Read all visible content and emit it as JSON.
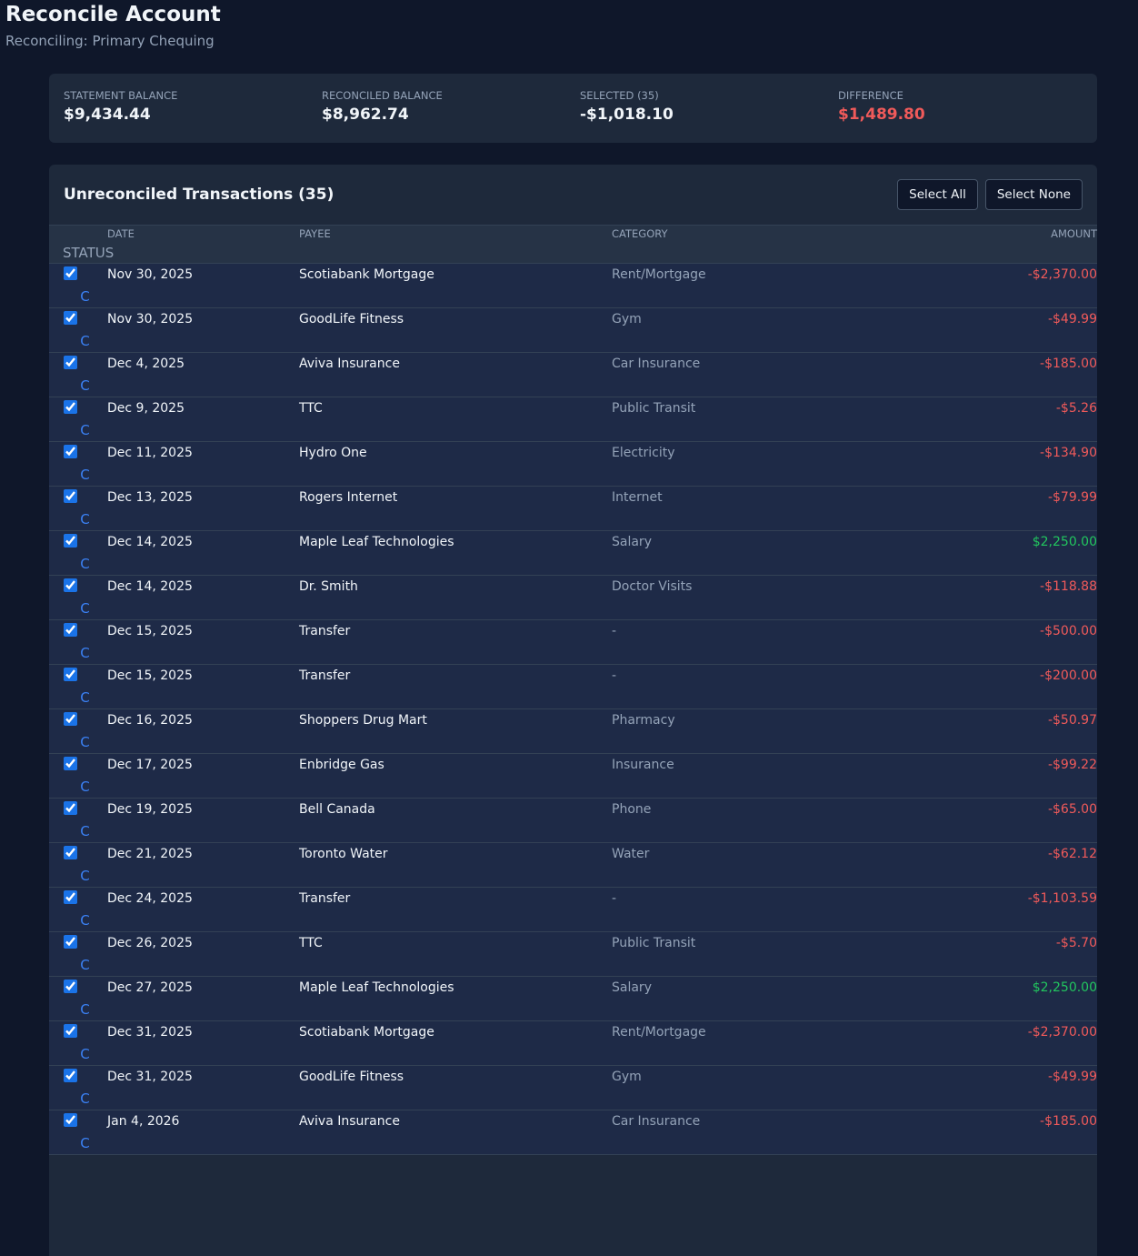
{
  "header": {
    "title": "Reconcile Account",
    "subtitle": "Reconciling: Primary Chequing"
  },
  "summary": [
    {
      "label": "STATEMENT BALANCE",
      "value": "$9,434.44"
    },
    {
      "label": "RECONCILED BALANCE",
      "value": "$8,962.74"
    },
    {
      "label": "SELECTED (35)",
      "value": "-$1,018.10"
    },
    {
      "label": "DIFFERENCE",
      "value": "$1,489.80"
    }
  ],
  "panel": {
    "title": "Unreconciled Transactions (35)",
    "buttons": [
      "Select All",
      "Select None"
    ]
  },
  "table": {
    "columns": [
      "DATE",
      "PAYEE",
      "CATEGORY",
      "AMOUNT",
      "STATUS"
    ],
    "rows": [
      [
        "Nov 30, 2025",
        "Scotiabank Mortgage",
        "Rent/Mortgage",
        "-$2,370.00",
        "C"
      ],
      [
        "Nov 30, 2025",
        "GoodLife Fitness",
        "Gym",
        "-$49.99",
        "C"
      ],
      [
        "Dec 4, 2025",
        "Aviva Insurance",
        "Car Insurance",
        "-$185.00",
        "C"
      ],
      [
        "Dec 9, 2025",
        "TTC",
        "Public Transit",
        "-$5.26",
        "C"
      ],
      [
        "Dec 11, 2025",
        "Hydro One",
        "Electricity",
        "-$134.90",
        "C"
      ],
      [
        "Dec 13, 2025",
        "Rogers Internet",
        "Internet",
        "-$79.99",
        "C"
      ],
      [
        "Dec 14, 2025",
        "Maple Leaf Technologies",
        "Salary",
        "$2,250.00",
        "C"
      ],
      [
        "Dec 14, 2025",
        "Dr. Smith",
        "Doctor Visits",
        "-$118.88",
        "C"
      ],
      [
        "Dec 15, 2025",
        "Transfer",
        "-",
        "-$500.00",
        "C"
      ],
      [
        "Dec 15, 2025",
        "Transfer",
        "-",
        "-$200.00",
        "C"
      ],
      [
        "Dec 16, 2025",
        "Shoppers Drug Mart",
        "Pharmacy",
        "-$50.97",
        "C"
      ],
      [
        "Dec 17, 2025",
        "Enbridge Gas",
        "Insurance",
        "-$99.22",
        "C"
      ],
      [
        "Dec 19, 2025",
        "Bell Canada",
        "Phone",
        "-$65.00",
        "C"
      ],
      [
        "Dec 21, 2025",
        "Toronto Water",
        "Water",
        "-$62.12",
        "C"
      ],
      [
        "Dec 24, 2025",
        "Transfer",
        "-",
        "-$1,103.59",
        "C"
      ],
      [
        "Dec 26, 2025",
        "TTC",
        "Public Transit",
        "-$5.70",
        "C"
      ],
      [
        "Dec 27, 2025",
        "Maple Leaf Technologies",
        "Salary",
        "$2,250.00",
        "C"
      ],
      [
        "Dec 31, 2025",
        "Scotiabank Mortgage",
        "Rent/Mortgage",
        "-$2,370.00",
        "C"
      ],
      [
        "Dec 31, 2025",
        "GoodLife Fitness",
        "Gym",
        "-$49.99",
        "C"
      ],
      [
        "Jan 4, 2026",
        "Aviva Insurance",
        "Car Insurance",
        "-$185.00",
        "C"
      ]
    ]
  }
}
